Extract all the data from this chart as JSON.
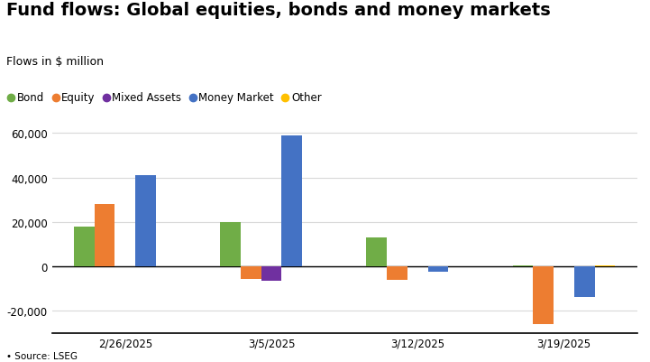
{
  "title": "Fund flows: Global equities, bonds and money markets",
  "subtitle": "Flows in $ million",
  "source": "• Source: LSEG",
  "categories": [
    "2/26/2025",
    "3/5/2025",
    "3/12/2025",
    "3/19/2025"
  ],
  "series": [
    {
      "name": "Bond",
      "color": "#70AD47",
      "values": [
        18000,
        20000,
        13000,
        500
      ]
    },
    {
      "name": "Equity",
      "color": "#ED7D31",
      "values": [
        28000,
        -5500,
        -6000,
        -26000
      ]
    },
    {
      "name": "Mixed Assets",
      "color": "#7030A0",
      "values": [
        0,
        -6500,
        0,
        0
      ]
    },
    {
      "name": "Money Market",
      "color": "#4472C4",
      "values": [
        41000,
        59000,
        -2500,
        -14000
      ]
    },
    {
      "name": "Other",
      "color": "#FFC000",
      "values": [
        0,
        0,
        0,
        500
      ]
    }
  ],
  "ylim": [
    -30000,
    68000
  ],
  "yticks": [
    -20000,
    0,
    20000,
    40000,
    60000
  ],
  "background_color": "#FFFFFF",
  "grid_color": "#D9D9D9",
  "title_fontsize": 14,
  "subtitle_fontsize": 9,
  "legend_fontsize": 8.5,
  "tick_fontsize": 8.5,
  "bar_width": 0.14
}
